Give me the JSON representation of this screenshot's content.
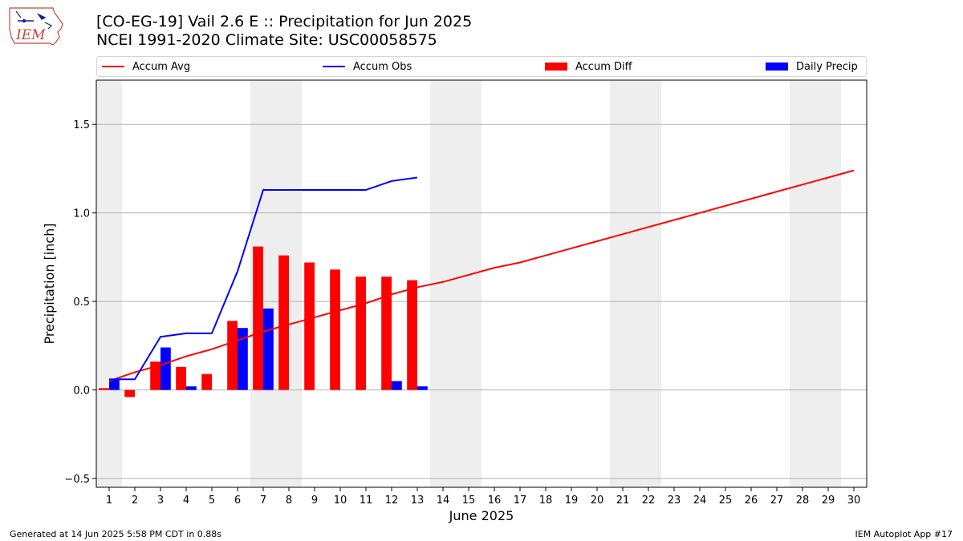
{
  "header": {
    "title_line1": "[CO-EG-19] Vail 2.6 E :: Precipitation for Jun 2025",
    "title_line2": "NCEI 1991-2020 Climate Site: USC00058575"
  },
  "logo": {
    "text": "IEM",
    "icon": "iowa-state-outline-icon"
  },
  "footer": {
    "left": "Generated at 14 Jun 2025 5:58 PM CDT in 0.88s",
    "right": "IEM Autoplot App #17"
  },
  "legend": [
    {
      "label": "Accum Avg",
      "kind": "line",
      "color": "#ff0000"
    },
    {
      "label": "Accum Obs",
      "kind": "line",
      "color": "#0000ff"
    },
    {
      "label": "Accum Diff",
      "kind": "box",
      "color": "#ff0000"
    },
    {
      "label": "Daily Precip",
      "kind": "box",
      "color": "#0000ff"
    }
  ],
  "chart_data": {
    "type": "bar",
    "xlabel": "June 2025",
    "ylabel": "Precipitation [inch]",
    "xlim": [
      0.5,
      30.5
    ],
    "ylim": [
      -0.55,
      1.75
    ],
    "yticks": [
      -0.5,
      0.0,
      0.5,
      1.0,
      1.5
    ],
    "ytick_labels": [
      "−0.5",
      "0.0",
      "0.5",
      "1.0",
      "1.5"
    ],
    "x": [
      1,
      2,
      3,
      4,
      5,
      6,
      7,
      8,
      9,
      10,
      11,
      12,
      13,
      14,
      15,
      16,
      17,
      18,
      19,
      20,
      21,
      22,
      23,
      24,
      25,
      26,
      27,
      28,
      29,
      30
    ],
    "x_tick_labels": [
      "1",
      "2",
      "3",
      "4",
      "5",
      "6",
      "7",
      "8",
      "9",
      "10",
      "11",
      "12",
      "13",
      "14",
      "15",
      "16",
      "17",
      "18",
      "19",
      "20",
      "21",
      "22",
      "23",
      "24",
      "25",
      "26",
      "27",
      "28",
      "29",
      "30"
    ],
    "grid": "horizontal",
    "weekend_shading": [
      [
        0.5,
        1.5
      ],
      [
        6.5,
        8.5
      ],
      [
        13.5,
        15.5
      ],
      [
        20.5,
        22.5
      ],
      [
        27.5,
        29.5
      ]
    ],
    "shade_color": "#eeeeee",
    "series": [
      {
        "name": "Accum Avg",
        "kind": "line",
        "color": "#ff0000",
        "x": [
          1,
          2,
          3,
          4,
          5,
          6,
          7,
          8,
          9,
          10,
          11,
          12,
          13,
          14,
          15,
          16,
          17,
          18,
          19,
          20,
          21,
          22,
          23,
          24,
          25,
          26,
          27,
          28,
          29,
          30
        ],
        "values": [
          0.05,
          0.1,
          0.14,
          0.19,
          0.23,
          0.28,
          0.33,
          0.37,
          0.41,
          0.45,
          0.49,
          0.54,
          0.58,
          0.61,
          0.65,
          0.69,
          0.72,
          0.76,
          0.8,
          0.84,
          0.88,
          0.92,
          0.96,
          1.0,
          1.04,
          1.08,
          1.12,
          1.16,
          1.2,
          1.24
        ]
      },
      {
        "name": "Accum Obs",
        "kind": "line",
        "color": "#0000ff",
        "x": [
          1,
          2,
          3,
          4,
          5,
          6,
          7,
          8,
          9,
          10,
          11,
          12,
          13
        ],
        "values": [
          0.06,
          0.06,
          0.3,
          0.32,
          0.32,
          0.67,
          1.13,
          1.13,
          1.13,
          1.13,
          1.13,
          1.18,
          1.2
        ]
      },
      {
        "name": "Accum Diff",
        "kind": "bar",
        "color": "#ff0000",
        "offset": -0.2,
        "x": [
          1,
          2,
          3,
          4,
          5,
          6,
          7,
          8,
          9,
          10,
          11,
          12,
          13
        ],
        "values": [
          0.01,
          -0.04,
          0.16,
          0.13,
          0.09,
          0.39,
          0.81,
          0.76,
          0.72,
          0.68,
          0.64,
          0.64,
          0.62
        ]
      },
      {
        "name": "Daily Precip",
        "kind": "bar",
        "color": "#0000ff",
        "offset": 0.2,
        "x": [
          1,
          2,
          3,
          4,
          5,
          6,
          7,
          8,
          9,
          10,
          11,
          12,
          13
        ],
        "values": [
          0.06,
          0.0,
          0.24,
          0.02,
          0.0,
          0.35,
          0.46,
          0.0,
          0.0,
          0.0,
          0.0,
          0.05,
          0.02
        ]
      }
    ]
  }
}
